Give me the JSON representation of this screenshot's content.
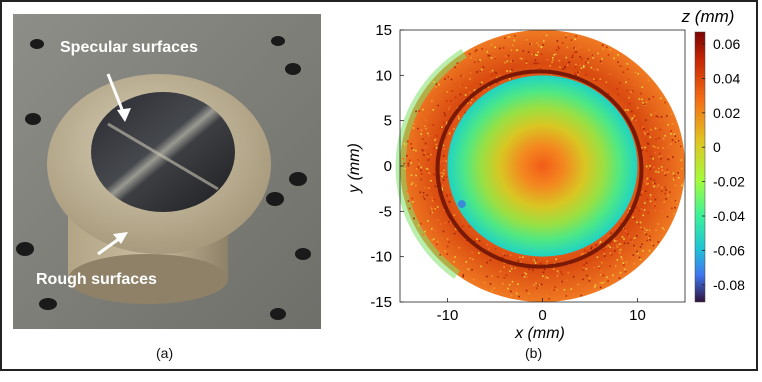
{
  "panel_a": {
    "caption": "(a)",
    "annotations": {
      "specular": "Specular surfaces",
      "rough": "Rough surfaces"
    }
  },
  "panel_b": {
    "caption": "(b)",
    "xlabel": "x (mm)",
    "ylabel": "y (mm)",
    "colorbar_label": "z (mm)"
  },
  "chart_data": {
    "type": "heatmap",
    "xlabel": "x (mm)",
    "ylabel": "y (mm)",
    "xlim": [
      -15,
      15
    ],
    "ylim": [
      -15,
      15
    ],
    "xticks": [
      -10,
      0,
      10
    ],
    "yticks": [
      15,
      10,
      5,
      0,
      -5,
      -10,
      -15
    ],
    "colorbar": {
      "label": "z (mm)",
      "min": -0.09,
      "max": 0.067,
      "ticks": [
        0.06,
        0.04,
        0.02,
        0,
        -0.02,
        -0.04,
        -0.06,
        -0.08
      ],
      "tick_labels": [
        "0.06",
        "0.04",
        "0.02",
        "0",
        "-0.02",
        "-0.04",
        "-0.06",
        "-0.08"
      ],
      "colormap": "turbo"
    },
    "surface": {
      "outer_radius_mm": 15,
      "inner_radius_mm": 10,
      "center_z_mm": 0.045,
      "inner_edge_z_mm": -0.035,
      "rim_z_mm": 0.045
    },
    "grid": false
  }
}
